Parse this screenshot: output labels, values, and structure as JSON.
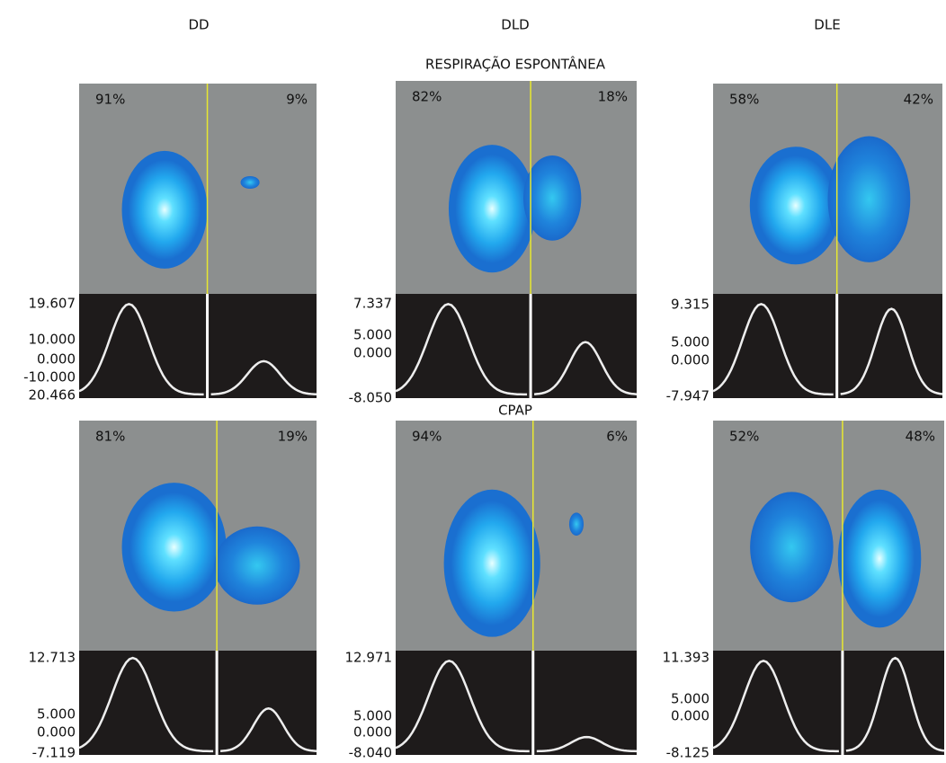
{
  "column_headers": [
    "DD",
    "DLD",
    "DLE"
  ],
  "rows": [
    {
      "title": "RESPIRAÇÃO ESPONTÂNEA",
      "panels": [
        {
          "left_percent": "91%",
          "right_percent": "9%",
          "scale_labels": [
            "19.607",
            "10.000",
            "0.000",
            "-10.000",
            "20.466"
          ]
        },
        {
          "left_percent": "82%",
          "right_percent": "18%",
          "scale_labels": [
            "7.337",
            "5.000",
            "0.000",
            "-8.050"
          ]
        },
        {
          "left_percent": "58%",
          "right_percent": "42%",
          "scale_labels": [
            "9.315",
            "5.000",
            "0.000",
            "-7.947"
          ]
        }
      ]
    },
    {
      "title": "CPAP",
      "panels": [
        {
          "left_percent": "81%",
          "right_percent": "19%",
          "scale_labels": [
            "12.713",
            "5.000",
            "0.000",
            "-7.119"
          ]
        },
        {
          "left_percent": "94%",
          "right_percent": "6%",
          "scale_labels": [
            "12.971",
            "5.000",
            "0.000",
            "-8.040"
          ]
        },
        {
          "left_percent": "52%",
          "right_percent": "48%",
          "scale_labels": [
            "11.393",
            "5.000",
            "0.000",
            "-8.125"
          ]
        }
      ]
    }
  ]
}
